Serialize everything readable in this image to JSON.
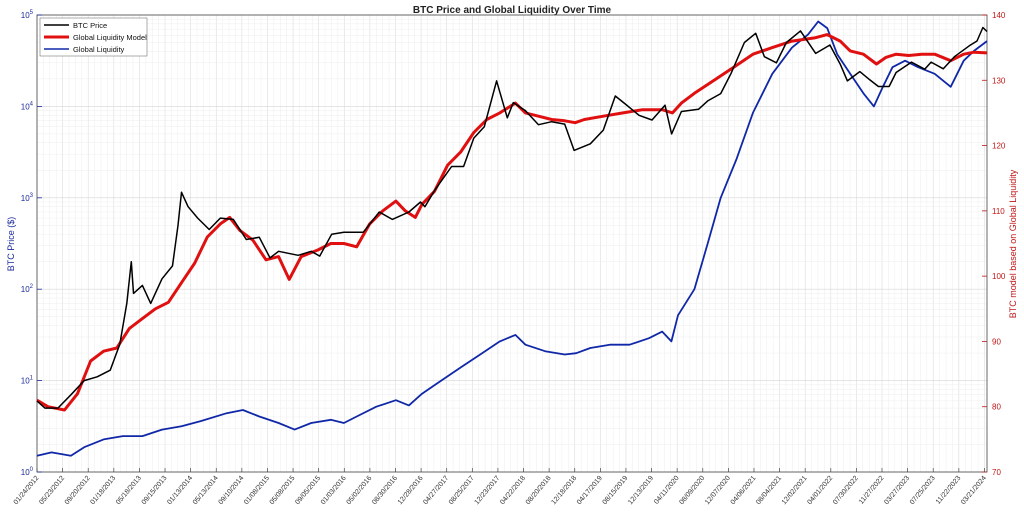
{
  "chart_data": {
    "type": "line",
    "title": "BTC Price and Global Liquidity Over Time",
    "ylabel_left": "BTC Price ($)",
    "ylabel_right": "BTC model based on Global Liquidity",
    "y_left_scale": "log",
    "y_left_lim": [
      1,
      100000
    ],
    "y_left_ticks": [
      {
        "value": 1,
        "base": "10",
        "exp": "0"
      },
      {
        "value": 10,
        "base": "10",
        "exp": "1"
      },
      {
        "value": 100,
        "base": "10",
        "exp": "2"
      },
      {
        "value": 1000,
        "base": "10",
        "exp": "3"
      },
      {
        "value": 10000,
        "base": "10",
        "exp": "4"
      },
      {
        "value": 100000,
        "base": "10",
        "exp": "5"
      }
    ],
    "y_right_lim": [
      70,
      140
    ],
    "y_right_ticks": [
      "70",
      "80",
      "90",
      "100",
      "110",
      "120",
      "130",
      "140"
    ],
    "x_range": [
      "2012-01-24",
      "2024-04-02"
    ],
    "x_ticks": [
      "01/24/2012",
      "05/23/2012",
      "09/20/2012",
      "01/18/2013",
      "05/18/2013",
      "09/15/2013",
      "01/13/2014",
      "05/13/2014",
      "09/10/2014",
      "01/08/2015",
      "05/08/2015",
      "09/05/2015",
      "01/03/2016",
      "05/02/2016",
      "08/30/2016",
      "12/28/2016",
      "04/27/2017",
      "08/25/2017",
      "12/23/2017",
      "04/22/2018",
      "08/20/2018",
      "12/18/2018",
      "04/17/2019",
      "08/15/2019",
      "12/13/2019",
      "04/11/2020",
      "08/09/2020",
      "12/07/2020",
      "04/06/2021",
      "08/04/2021",
      "12/02/2021",
      "04/01/2022",
      "07/30/2022",
      "11/27/2022",
      "03/27/2023",
      "07/25/2023",
      "11/22/2023",
      "03/21/2024"
    ],
    "grid": true,
    "legend_position": "top-left",
    "series": [
      {
        "name": "BTC Price",
        "color": "#000000",
        "axis": "left",
        "points": [
          [
            "2012-01-24",
            6
          ],
          [
            "2012-03-01",
            5
          ],
          [
            "2012-05-01",
            5
          ],
          [
            "2012-07-01",
            7
          ],
          [
            "2012-09-01",
            10
          ],
          [
            "2012-11-01",
            11
          ],
          [
            "2013-01-01",
            13
          ],
          [
            "2013-02-15",
            25
          ],
          [
            "2013-03-20",
            70
          ],
          [
            "2013-04-10",
            200
          ],
          [
            "2013-04-20",
            90
          ],
          [
            "2013-06-01",
            110
          ],
          [
            "2013-07-10",
            70
          ],
          [
            "2013-09-01",
            130
          ],
          [
            "2013-10-20",
            180
          ],
          [
            "2013-11-15",
            500
          ],
          [
            "2013-12-01",
            1150
          ],
          [
            "2014-01-01",
            800
          ],
          [
            "2014-02-15",
            600
          ],
          [
            "2014-04-10",
            450
          ],
          [
            "2014-06-01",
            600
          ],
          [
            "2014-08-01",
            580
          ],
          [
            "2014-10-01",
            350
          ],
          [
            "2014-12-01",
            370
          ],
          [
            "2015-01-20",
            220
          ],
          [
            "2015-03-01",
            260
          ],
          [
            "2015-06-01",
            235
          ],
          [
            "2015-08-01",
            260
          ],
          [
            "2015-09-10",
            230
          ],
          [
            "2015-11-05",
            400
          ],
          [
            "2016-01-01",
            420
          ],
          [
            "2016-04-01",
            420
          ],
          [
            "2016-06-15",
            700
          ],
          [
            "2016-08-15",
            580
          ],
          [
            "2016-11-01",
            700
          ],
          [
            "2016-12-25",
            900
          ],
          [
            "2017-01-15",
            800
          ],
          [
            "2017-03-01",
            1200
          ],
          [
            "2017-05-20",
            2200
          ],
          [
            "2017-07-15",
            2200
          ],
          [
            "2017-09-01",
            4500
          ],
          [
            "2017-10-20",
            6000
          ],
          [
            "2017-12-17",
            19000
          ],
          [
            "2018-02-05",
            7500
          ],
          [
            "2018-03-05",
            11000
          ],
          [
            "2018-05-01",
            9000
          ],
          [
            "2018-07-01",
            6300
          ],
          [
            "2018-09-01",
            6800
          ],
          [
            "2018-11-01",
            6400
          ],
          [
            "2018-12-15",
            3300
          ],
          [
            "2019-03-01",
            3900
          ],
          [
            "2019-05-01",
            5500
          ],
          [
            "2019-06-26",
            13000
          ],
          [
            "2019-08-15",
            10500
          ],
          [
            "2019-10-15",
            8000
          ],
          [
            "2019-12-15",
            7100
          ],
          [
            "2020-02-14",
            10300
          ],
          [
            "2020-03-16",
            5000
          ],
          [
            "2020-05-01",
            8800
          ],
          [
            "2020-07-20",
            9300
          ],
          [
            "2020-09-01",
            11500
          ],
          [
            "2020-11-01",
            13800
          ],
          [
            "2020-12-20",
            23000
          ],
          [
            "2021-02-20",
            50000
          ],
          [
            "2021-04-14",
            63000
          ],
          [
            "2021-05-25",
            35000
          ],
          [
            "2021-07-20",
            30000
          ],
          [
            "2021-09-05",
            50000
          ],
          [
            "2021-11-10",
            67000
          ],
          [
            "2022-01-20",
            38000
          ],
          [
            "2022-03-28",
            47000
          ],
          [
            "2022-05-15",
            29000
          ],
          [
            "2022-06-18",
            19000
          ],
          [
            "2022-08-15",
            24000
          ],
          [
            "2022-10-01",
            19500
          ],
          [
            "2022-11-10",
            16500
          ],
          [
            "2022-12-30",
            16500
          ],
          [
            "2023-02-01",
            23500
          ],
          [
            "2023-04-14",
            30500
          ],
          [
            "2023-06-15",
            25500
          ],
          [
            "2023-07-15",
            30500
          ],
          [
            "2023-09-10",
            25800
          ],
          [
            "2023-11-01",
            35000
          ],
          [
            "2024-01-10",
            46000
          ],
          [
            "2024-02-15",
            52000
          ],
          [
            "2024-03-14",
            73000
          ],
          [
            "2024-04-02",
            66000
          ]
        ]
      },
      {
        "name": "Global Liquidity Model",
        "color": "#e01010",
        "axis": "right",
        "points": [
          [
            "2012-01-24",
            81
          ],
          [
            "2012-03-15",
            80
          ],
          [
            "2012-06-01",
            79.5
          ],
          [
            "2012-08-01",
            82
          ],
          [
            "2012-10-01",
            87
          ],
          [
            "2012-12-01",
            88.5
          ],
          [
            "2013-02-01",
            89
          ],
          [
            "2013-04-01",
            92
          ],
          [
            "2013-06-01",
            93.5
          ],
          [
            "2013-08-01",
            95
          ],
          [
            "2013-10-01",
            96
          ],
          [
            "2013-12-01",
            99
          ],
          [
            "2014-02-01",
            102
          ],
          [
            "2014-04-01",
            106
          ],
          [
            "2014-06-01",
            108
          ],
          [
            "2014-07-15",
            109
          ],
          [
            "2014-09-01",
            107
          ],
          [
            "2014-11-01",
            105.5
          ],
          [
            "2015-01-01",
            102.5
          ],
          [
            "2015-03-01",
            103
          ],
          [
            "2015-04-20",
            99.5
          ],
          [
            "2015-06-15",
            103
          ],
          [
            "2015-09-01",
            104
          ],
          [
            "2015-11-01",
            105
          ],
          [
            "2016-01-01",
            105
          ],
          [
            "2016-03-01",
            104.5
          ],
          [
            "2016-05-01",
            108
          ],
          [
            "2016-07-01",
            110
          ],
          [
            "2016-09-01",
            111.5
          ],
          [
            "2016-10-15",
            110
          ],
          [
            "2016-12-01",
            109
          ],
          [
            "2017-01-01",
            111
          ],
          [
            "2017-03-01",
            113
          ],
          [
            "2017-05-01",
            117
          ],
          [
            "2017-07-01",
            119
          ],
          [
            "2017-09-01",
            122
          ],
          [
            "2017-11-01",
            124
          ],
          [
            "2018-01-01",
            125
          ],
          [
            "2018-03-15",
            126.5
          ],
          [
            "2018-05-01",
            125
          ],
          [
            "2018-07-01",
            124.5
          ],
          [
            "2018-09-01",
            124
          ],
          [
            "2018-11-01",
            123.8
          ],
          [
            "2018-12-20",
            123.5
          ],
          [
            "2019-02-01",
            124
          ],
          [
            "2019-05-01",
            124.5
          ],
          [
            "2019-08-01",
            125
          ],
          [
            "2019-11-01",
            125.5
          ],
          [
            "2020-02-01",
            125.5
          ],
          [
            "2020-03-20",
            125
          ],
          [
            "2020-05-01",
            126.5
          ],
          [
            "2020-07-01",
            128
          ],
          [
            "2020-10-01",
            130
          ],
          [
            "2021-01-01",
            132
          ],
          [
            "2021-04-01",
            134
          ],
          [
            "2021-07-01",
            135
          ],
          [
            "2021-10-01",
            136
          ],
          [
            "2022-01-15",
            136.5
          ],
          [
            "2022-03-15",
            137
          ],
          [
            "2022-05-15",
            136
          ],
          [
            "2022-07-01",
            134.5
          ],
          [
            "2022-09-01",
            134
          ],
          [
            "2022-11-01",
            132.5
          ],
          [
            "2022-12-15",
            133.5
          ],
          [
            "2023-02-01",
            134
          ],
          [
            "2023-04-01",
            133.8
          ],
          [
            "2023-06-01",
            134
          ],
          [
            "2023-08-01",
            134
          ],
          [
            "2023-10-15",
            133
          ],
          [
            "2023-12-15",
            134
          ],
          [
            "2024-02-01",
            134.3
          ],
          [
            "2024-04-02",
            134.2
          ]
        ]
      },
      {
        "name": "Global Liquidity",
        "color": "#1028a8",
        "axis": "right",
        "points": [
          [
            "2012-01-24",
            72.5
          ],
          [
            "2012-04-01",
            73
          ],
          [
            "2012-07-01",
            72.5
          ],
          [
            "2012-09-01",
            73.8
          ],
          [
            "2012-12-01",
            75
          ],
          [
            "2013-03-01",
            75.5
          ],
          [
            "2013-06-01",
            75.5
          ],
          [
            "2013-09-01",
            76.5
          ],
          [
            "2013-12-01",
            77
          ],
          [
            "2014-03-01",
            77.8
          ],
          [
            "2014-07-01",
            79
          ],
          [
            "2014-09-15",
            79.5
          ],
          [
            "2014-12-01",
            78.5
          ],
          [
            "2015-03-01",
            77.5
          ],
          [
            "2015-05-15",
            76.5
          ],
          [
            "2015-08-01",
            77.5
          ],
          [
            "2015-11-01",
            78
          ],
          [
            "2016-01-01",
            77.5
          ],
          [
            "2016-03-01",
            78.5
          ],
          [
            "2016-06-01",
            80
          ],
          [
            "2016-09-01",
            81
          ],
          [
            "2016-11-01",
            80.2
          ],
          [
            "2017-01-01",
            82
          ],
          [
            "2017-04-01",
            84
          ],
          [
            "2017-07-01",
            86
          ],
          [
            "2017-10-01",
            88
          ],
          [
            "2018-01-01",
            90
          ],
          [
            "2018-03-15",
            91
          ],
          [
            "2018-05-01",
            89.5
          ],
          [
            "2018-08-01",
            88.5
          ],
          [
            "2018-11-01",
            88
          ],
          [
            "2018-12-25",
            88.2
          ],
          [
            "2019-03-01",
            89
          ],
          [
            "2019-06-01",
            89.5
          ],
          [
            "2019-09-01",
            89.5
          ],
          [
            "2019-12-01",
            90.5
          ],
          [
            "2020-02-01",
            91.5
          ],
          [
            "2020-03-15",
            90
          ],
          [
            "2020-04-15",
            94
          ],
          [
            "2020-07-01",
            98
          ],
          [
            "2020-09-01",
            105
          ],
          [
            "2020-11-01",
            112
          ],
          [
            "2021-01-15",
            118
          ],
          [
            "2021-04-01",
            125
          ],
          [
            "2021-07-01",
            131
          ],
          [
            "2021-10-01",
            135
          ],
          [
            "2021-12-15",
            137
          ],
          [
            "2022-02-01",
            139
          ],
          [
            "2022-03-15",
            138
          ],
          [
            "2022-05-01",
            134
          ],
          [
            "2022-07-01",
            131
          ],
          [
            "2022-09-01",
            128
          ],
          [
            "2022-10-20",
            126
          ],
          [
            "2022-12-01",
            129
          ],
          [
            "2023-01-15",
            132
          ],
          [
            "2023-03-15",
            133
          ],
          [
            "2023-05-15",
            132
          ],
          [
            "2023-08-01",
            131
          ],
          [
            "2023-10-15",
            129
          ],
          [
            "2023-12-15",
            133
          ],
          [
            "2024-02-01",
            134.5
          ],
          [
            "2024-04-02",
            136
          ]
        ]
      }
    ]
  }
}
